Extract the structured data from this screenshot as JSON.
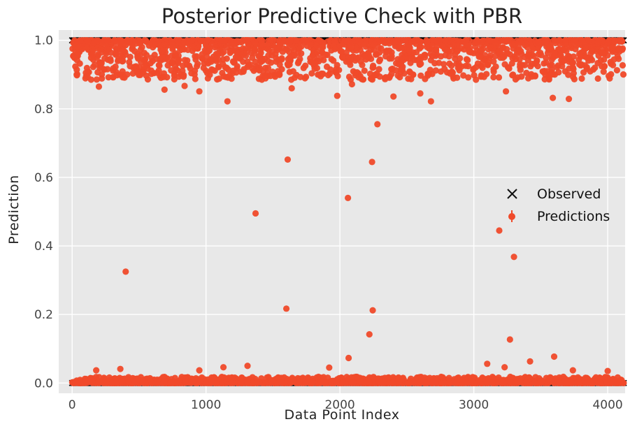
{
  "chart_data": {
    "type": "scatter",
    "title": "Posterior Predictive Check with PBR",
    "xlabel": "Data Point Index",
    "ylabel": "Prediction",
    "xlim": [
      -100,
      4130
    ],
    "ylim": [
      -0.03,
      1.03
    ],
    "xticks": [
      0,
      1000,
      2000,
      3000,
      4000
    ],
    "yticks": [
      0.0,
      0.2,
      0.4,
      0.6,
      0.8,
      1.0
    ],
    "xtick_labels": [
      "0",
      "1000",
      "2000",
      "3000",
      "4000"
    ],
    "ytick_labels": [
      "0.0",
      "0.2",
      "0.4",
      "0.6",
      "0.8",
      "1.0"
    ],
    "grid": true,
    "legend_position": "right",
    "n_points": 4120,
    "series": [
      {
        "name": "Observed",
        "marker": "x",
        "color": "#000000",
        "description": "binary observed labels at 0 and 1 for every index",
        "values": [
          0,
          1
        ]
      },
      {
        "name": "Predictions",
        "marker": "o",
        "color": "#f04a2a",
        "description": "predicted probabilities; dense band 0.0-0.02 and 0.86-1.0",
        "points": [
          [
            400,
            0.325
          ],
          [
            1370,
            0.495
          ],
          [
            1600,
            0.217
          ],
          [
            1610,
            0.652
          ],
          [
            2060,
            0.54
          ],
          [
            2240,
            0.645
          ],
          [
            2245,
            0.212
          ],
          [
            2220,
            0.142
          ],
          [
            2065,
            0.073
          ],
          [
            2280,
            0.755
          ],
          [
            3190,
            0.445
          ],
          [
            3300,
            0.368
          ],
          [
            3270,
            0.127
          ],
          [
            3420,
            0.063
          ],
          [
            3600,
            0.077
          ],
          [
            3100,
            0.056
          ],
          [
            3230,
            0.046
          ],
          [
            180,
            0.037
          ],
          [
            360,
            0.041
          ],
          [
            950,
            0.037
          ],
          [
            1130,
            0.046
          ],
          [
            1310,
            0.05
          ],
          [
            1920,
            0.045
          ],
          [
            3740,
            0.037
          ],
          [
            4000,
            0.035
          ],
          [
            1160,
            0.822
          ],
          [
            1980,
            0.838
          ],
          [
            2400,
            0.836
          ],
          [
            2600,
            0.845
          ],
          [
            2680,
            0.822
          ],
          [
            690,
            0.856
          ],
          [
            950,
            0.851
          ],
          [
            1640,
            0.86
          ],
          [
            3590,
            0.832
          ],
          [
            3710,
            0.829
          ],
          [
            840,
            0.867
          ],
          [
            2090,
            0.872
          ],
          [
            3240,
            0.851
          ],
          [
            200,
            0.865
          ]
        ]
      }
    ]
  }
}
